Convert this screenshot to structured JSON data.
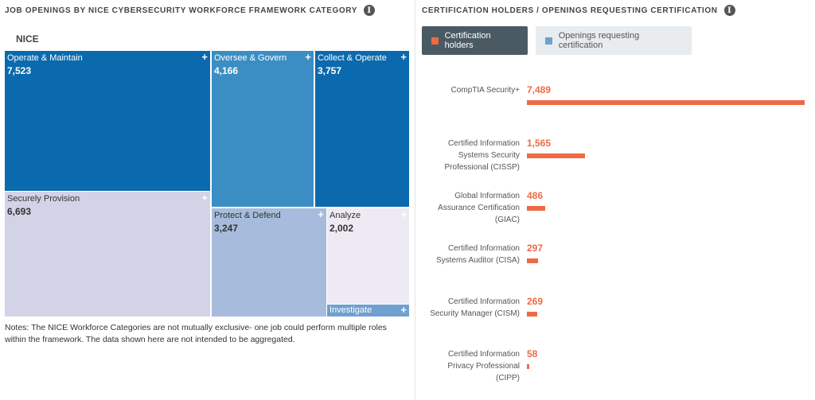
{
  "left_panel": {
    "title": "JOB OPENINGS BY NICE CYBERSECURITY WORKFORCE FRAMEWORK CATEGORY",
    "info_icon": "i",
    "root_label": "NICE",
    "notes": "Notes: The NICE Workforce Categories are not mutually exclusive- one job could perform multiple roles within the framework. The data shown here are not intended to be aggregated."
  },
  "right_panel": {
    "title": "CERTIFICATION HOLDERS / OPENINGS REQUESTING CERTIFICATION",
    "info_icon": "i",
    "legend": {
      "holders": "Certification holders",
      "openings": "Openings requesting certification"
    }
  },
  "chart_data": [
    {
      "type": "treemap",
      "title": "JOB OPENINGS BY NICE CYBERSECURITY WORKFORCE FRAMEWORK CATEGORY",
      "root": "NICE",
      "expand_symbol": "+",
      "categories": [
        {
          "name": "Operate & Maintain",
          "value": 7523,
          "display": "7,523",
          "color": "#0b6aad"
        },
        {
          "name": "Securely Provision",
          "value": 6693,
          "display": "6,693",
          "color": "#d3d3e7"
        },
        {
          "name": "Oversee & Govern",
          "value": 4166,
          "display": "4,166",
          "color": "#3b8ec3"
        },
        {
          "name": "Collect & Operate",
          "value": 3757,
          "display": "3,757",
          "color": "#0b6aad"
        },
        {
          "name": "Protect & Defend",
          "value": 3247,
          "display": "3,247",
          "color": "#a7bcdc"
        },
        {
          "name": "Analyze",
          "value": 2002,
          "display": "2,002",
          "color": "#eeeaf3"
        },
        {
          "name": "Investigate",
          "value": null,
          "display": "",
          "color": "#6fa0cf"
        }
      ]
    },
    {
      "type": "bar",
      "orientation": "horizontal",
      "title": "CERTIFICATION HOLDERS / OPENINGS REQUESTING CERTIFICATION",
      "series": [
        {
          "name": "Certification holders",
          "color": "#ef6a45",
          "values": [
            7489,
            1565,
            486,
            297,
            269,
            58
          ]
        }
      ],
      "categories": [
        "CompTIA Security+",
        "Certified Information Systems Security Professional (CISSP)",
        "Global Information Assurance Certification (GIAC)",
        "Certified Information Systems Auditor (CISA)",
        "Certified Information Security Manager (CISM)",
        "Certified Information Privacy Professional (CIPP)"
      ],
      "labels": [
        "7,489",
        "1,565",
        "486",
        "297",
        "269",
        "58"
      ],
      "xlim": [
        0,
        7489
      ]
    }
  ]
}
